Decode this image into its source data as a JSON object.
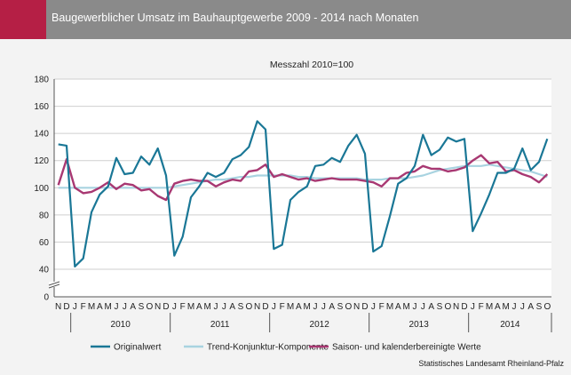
{
  "header": {
    "title": "Baugewerblicher Umsatz im Bauhauptgewerbe 2009 - 2014 nach Monaten"
  },
  "source": "Statistisches Landesamt Rheinland-Pfalz",
  "colors": {
    "header_bg": "#8a8a8a",
    "accent": "#b51f45",
    "original": "#1a7796",
    "trend": "#a8d3e0",
    "seasonal": "#a83872"
  },
  "chart_data": {
    "type": "line",
    "subtitle": "Messzahl 2010=100",
    "ylim": [
      0,
      180
    ],
    "y_ticks": [
      0,
      40,
      60,
      80,
      100,
      120,
      140,
      160,
      180
    ],
    "y_axis_break": true,
    "grid": "horizontal",
    "legend_position": "bottom",
    "month_labels": [
      "N",
      "D",
      "J",
      "F",
      "M",
      "A",
      "M",
      "J",
      "J",
      "A",
      "S",
      "O",
      "N",
      "D",
      "J",
      "F",
      "M",
      "A",
      "M",
      "J",
      "J",
      "A",
      "S",
      "O",
      "N",
      "D",
      "J",
      "F",
      "M",
      "A",
      "M",
      "J",
      "J",
      "A",
      "S",
      "O",
      "N",
      "D",
      "J",
      "F",
      "M",
      "A",
      "M",
      "J",
      "J",
      "A",
      "S",
      "O",
      "N",
      "D",
      "J",
      "F",
      "M",
      "A",
      "M",
      "J",
      "J",
      "A",
      "S",
      "O"
    ],
    "year_groups": [
      {
        "label": "2010",
        "start": 2,
        "end": 13
      },
      {
        "label": "2011",
        "start": 14,
        "end": 25
      },
      {
        "label": "2012",
        "start": 26,
        "end": 37
      },
      {
        "label": "2013",
        "start": 38,
        "end": 49
      },
      {
        "label": "2014",
        "start": 50,
        "end": 59
      }
    ],
    "series": [
      {
        "name": "Originalwert",
        "color": "#1a7796",
        "values": [
          132,
          131,
          42,
          48,
          82,
          95,
          101,
          122,
          110,
          111,
          123,
          117,
          129,
          109,
          50,
          64,
          93,
          101,
          111,
          108,
          111,
          121,
          124,
          130,
          149,
          143,
          55,
          58,
          91,
          97,
          101,
          116,
          117,
          122,
          119,
          131,
          139,
          125,
          53,
          57,
          79,
          103,
          107,
          116,
          139,
          124,
          128,
          137,
          134,
          136,
          68,
          81,
          95,
          111,
          111,
          114,
          129,
          113,
          119,
          136
        ]
      },
      {
        "name": "Trend-Konjunktur-Komponente",
        "color": "#a8d3e0",
        "values": [
          100,
          100,
          100,
          100,
          100,
          100,
          100,
          100,
          100,
          100,
          100,
          100,
          100,
          100,
          101,
          102,
          103,
          104,
          105,
          106,
          106,
          107,
          108,
          108,
          109,
          109,
          109,
          109,
          109,
          108,
          108,
          107,
          107,
          107,
          107,
          107,
          107,
          106,
          106,
          106,
          107,
          107,
          107,
          108,
          109,
          111,
          113,
          114,
          115,
          116,
          116,
          116,
          117,
          116,
          115,
          114,
          113,
          112,
          110,
          108
        ]
      },
      {
        "name": "Saison- und kalenderbereinigte Werte",
        "color": "#a83872",
        "values": [
          102,
          121,
          100,
          96,
          97,
          100,
          104,
          99,
          103,
          102,
          98,
          99,
          94,
          91,
          103,
          105,
          106,
          105,
          105,
          101,
          104,
          106,
          105,
          112,
          113,
          117,
          108,
          110,
          108,
          106,
          107,
          105,
          106,
          107,
          106,
          106,
          106,
          105,
          104,
          101,
          107,
          107,
          111,
          112,
          116,
          114,
          114,
          112,
          113,
          115,
          120,
          124,
          118,
          119,
          112,
          113,
          110,
          108,
          104,
          110
        ]
      }
    ]
  }
}
